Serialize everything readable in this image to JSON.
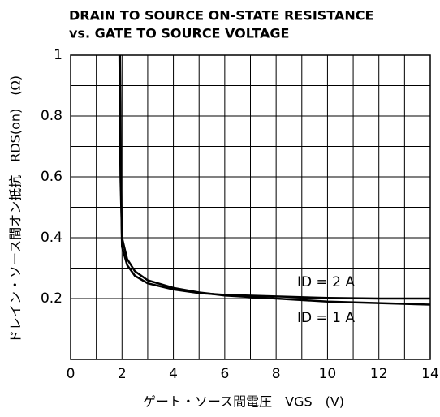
{
  "chart_data": {
    "type": "line",
    "title": [
      "DRAIN TO SOURCE ON-STATE RESISTANCE",
      "vs. GATE TO SOURCE VOLTAGE"
    ],
    "xlabel": "ゲート・ソース間電圧　VGS　(V)",
    "ylabel": "ドレイン・ソース間オン抵抗　RDS(on)　(Ω)",
    "xlim": [
      0,
      14
    ],
    "ylim": [
      0,
      1
    ],
    "xticks": [
      0,
      2,
      4,
      6,
      8,
      10,
      12,
      14
    ],
    "yticks": [
      0.2,
      0.4,
      0.6,
      0.8,
      1
    ],
    "xgrid": [
      1,
      2,
      3,
      4,
      5,
      6,
      7,
      8,
      9,
      10,
      11,
      12,
      13
    ],
    "ygrid": [
      0.1,
      0.2,
      0.3,
      0.4,
      0.5,
      0.6,
      0.7,
      0.8,
      0.9
    ],
    "grid": true,
    "series": [
      {
        "name": "ID = 2 A",
        "color": "#000000",
        "x": [
          1.92,
          1.96,
          2.0,
          2.2,
          2.5,
          3,
          4,
          5,
          6,
          8,
          10,
          12,
          14
        ],
        "values": [
          1.0,
          0.6,
          0.37,
          0.31,
          0.275,
          0.25,
          0.23,
          0.218,
          0.212,
          0.207,
          0.202,
          0.2,
          0.2
        ]
      },
      {
        "name": "ID = 1 A",
        "color": "#000000",
        "x": [
          1.9,
          1.94,
          2.0,
          2.2,
          2.5,
          3,
          4,
          5,
          6,
          8,
          10,
          12,
          14
        ],
        "values": [
          1.0,
          0.6,
          0.4,
          0.33,
          0.29,
          0.26,
          0.235,
          0.22,
          0.21,
          0.2,
          0.19,
          0.185,
          0.18
        ]
      }
    ]
  }
}
